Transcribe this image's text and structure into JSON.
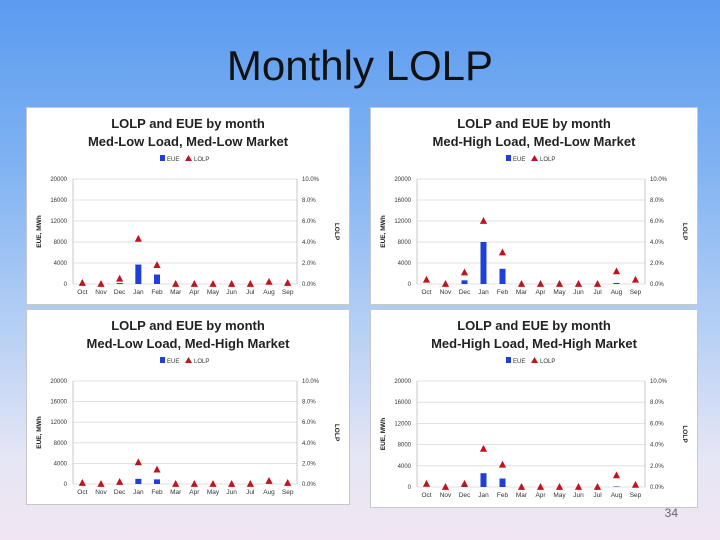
{
  "slide": {
    "title": "Monthly LOLP",
    "page_number": "34"
  },
  "colors": {
    "eue_bar": "#1f3fd8",
    "lolp_marker": "#c0141c",
    "grid": "#d9d9d9",
    "axis_text": "#333333"
  },
  "chart_data": [
    {
      "type": "bar",
      "title": "LOLP and EUE by month",
      "subtitle": "Med-Low Load, Med-Low Market",
      "categories": [
        "Oct",
        "Nov",
        "Dec",
        "Jan",
        "Feb",
        "Mar",
        "Apr",
        "May",
        "Jun",
        "Jul",
        "Aug",
        "Sep"
      ],
      "series": [
        {
          "name": "EUE",
          "axis": "left",
          "kind": "bar",
          "values": [
            0,
            0,
            200,
            3700,
            1800,
            0,
            0,
            0,
            0,
            0,
            50,
            0
          ]
        },
        {
          "name": "LOLP",
          "axis": "right",
          "kind": "marker",
          "values": [
            0.1,
            0.0,
            0.5,
            4.3,
            1.8,
            0.0,
            0.0,
            0.0,
            0.0,
            0.0,
            0.2,
            0.1
          ]
        }
      ],
      "ylabel": "EUE, MWh",
      "y2label": "LOLP",
      "ylim": [
        0,
        20000
      ],
      "y2lim": [
        0,
        10
      ],
      "yticks": [
        "20000",
        "16000",
        "12000",
        "8000",
        "4000",
        "0"
      ],
      "y2ticks": [
        "10.0%",
        "8.0%",
        "6.0%",
        "4.0%",
        "2.0%",
        "0.0%"
      ],
      "legend": [
        "EUE",
        "LOLP"
      ]
    },
    {
      "type": "bar",
      "title": "LOLP and EUE by month",
      "subtitle": "Med-High Load, Med-Low Market",
      "categories": [
        "Oct",
        "Nov",
        "Dec",
        "Jan",
        "Feb",
        "Mar",
        "Apr",
        "May",
        "Jun",
        "Jul",
        "Aug",
        "Sep"
      ],
      "series": [
        {
          "name": "EUE",
          "axis": "left",
          "kind": "bar",
          "values": [
            0,
            0,
            700,
            8000,
            2900,
            0,
            0,
            0,
            0,
            0,
            200,
            0
          ]
        },
        {
          "name": "LOLP",
          "axis": "right",
          "kind": "marker",
          "values": [
            0.4,
            0.0,
            1.1,
            6.0,
            3.0,
            0.0,
            0.0,
            0.0,
            0.0,
            0.0,
            1.2,
            0.4
          ]
        }
      ],
      "ylabel": "EUE, MWh",
      "y2label": "LOLP",
      "ylim": [
        0,
        20000
      ],
      "y2lim": [
        0,
        10
      ],
      "yticks": [
        "20000",
        "16000",
        "12000",
        "8000",
        "4000",
        "0"
      ],
      "y2ticks": [
        "10.0%",
        "8.0%",
        "6.0%",
        "4.0%",
        "2.0%",
        "0.0%"
      ],
      "legend": [
        "EUE",
        "LOLP"
      ]
    },
    {
      "type": "bar",
      "title": "LOLP and EUE by month",
      "subtitle": "Med-Low Load, Med-High Market",
      "categories": [
        "Oct",
        "Nov",
        "Dec",
        "Jan",
        "Feb",
        "Mar",
        "Apr",
        "May",
        "Jun",
        "Jul",
        "Aug",
        "Sep"
      ],
      "series": [
        {
          "name": "EUE",
          "axis": "left",
          "kind": "bar",
          "values": [
            0,
            0,
            100,
            1000,
            900,
            0,
            0,
            0,
            0,
            0,
            50,
            0
          ]
        },
        {
          "name": "LOLP",
          "axis": "right",
          "kind": "marker",
          "values": [
            0.1,
            0.0,
            0.2,
            2.1,
            1.4,
            0.0,
            0.0,
            0.0,
            0.0,
            0.0,
            0.3,
            0.1
          ]
        }
      ],
      "ylabel": "EUE, MWh",
      "y2label": "LOLP",
      "ylim": [
        0,
        20000
      ],
      "y2lim": [
        0,
        10
      ],
      "yticks": [
        "20000",
        "16000",
        "12000",
        "8000",
        "4000",
        "0"
      ],
      "y2ticks": [
        "10.0%",
        "8.0%",
        "6.0%",
        "4.0%",
        "2.0%",
        "0.0%"
      ],
      "legend": [
        "EUE",
        "LOLP"
      ]
    },
    {
      "type": "bar",
      "title": "LOLP and EUE by month",
      "subtitle": "Med-High Load, Med-High Market",
      "categories": [
        "Oct",
        "Nov",
        "Dec",
        "Jan",
        "Feb",
        "Mar",
        "Apr",
        "May",
        "Jun",
        "Jul",
        "Aug",
        "Sep"
      ],
      "series": [
        {
          "name": "EUE",
          "axis": "left",
          "kind": "bar",
          "values": [
            0,
            0,
            200,
            2600,
            1600,
            0,
            0,
            0,
            0,
            0,
            100,
            0
          ]
        },
        {
          "name": "LOLP",
          "axis": "right",
          "kind": "marker",
          "values": [
            0.3,
            0.0,
            0.3,
            3.6,
            2.1,
            0.0,
            0.0,
            0.0,
            0.0,
            0.0,
            1.1,
            0.2
          ]
        }
      ],
      "ylabel": "EUE, MWh",
      "y2label": "LOLP",
      "ylim": [
        0,
        20000
      ],
      "y2lim": [
        0,
        10
      ],
      "yticks": [
        "20000",
        "16000",
        "12000",
        "8000",
        "4000",
        "0"
      ],
      "y2ticks": [
        "10.0%",
        "8.0%",
        "6.0%",
        "4.0%",
        "2.0%",
        "0.0%"
      ],
      "legend": [
        "EUE",
        "LOLP"
      ]
    }
  ]
}
